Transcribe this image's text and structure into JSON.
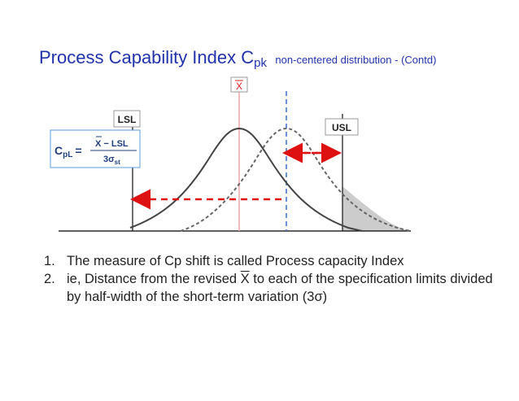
{
  "title": {
    "main": "Process Capability Index C",
    "subscript": "pk",
    "note": "non-centered distribution  - (Contd)"
  },
  "diagram": {
    "labels": {
      "xbar": "X",
      "lsl": "LSL",
      "usl": "USL"
    },
    "formula": {
      "lhs": "C",
      "lhs_sub": "pL",
      "equals": "=",
      "numerator_xbar": "X",
      "numerator_rest": " − LSL",
      "denominator": "3σ",
      "denominator_sub": "st"
    },
    "colors": {
      "axis_line": "#000000",
      "original_curve": "#444444",
      "shifted_curve": "#666666",
      "center_line": "#f0a8a8",
      "shifted_center_line": "#3a6fc4",
      "arrow": "#dd1111",
      "tail_fill": "#cccccc",
      "label_border": "#999999",
      "xbar_label": "#dd2222",
      "formula_border": "#5b9bd5"
    }
  },
  "bullets": [
    {
      "num": "1.",
      "text": "The measure of Cp shift is called Process capacity Index"
    },
    {
      "num": "2.",
      "pre": "ie, Distance from the revised ",
      "xbar": "X",
      "post": " to each of the specification limits  divided by half-width of the short-term variation (3σ)"
    }
  ]
}
